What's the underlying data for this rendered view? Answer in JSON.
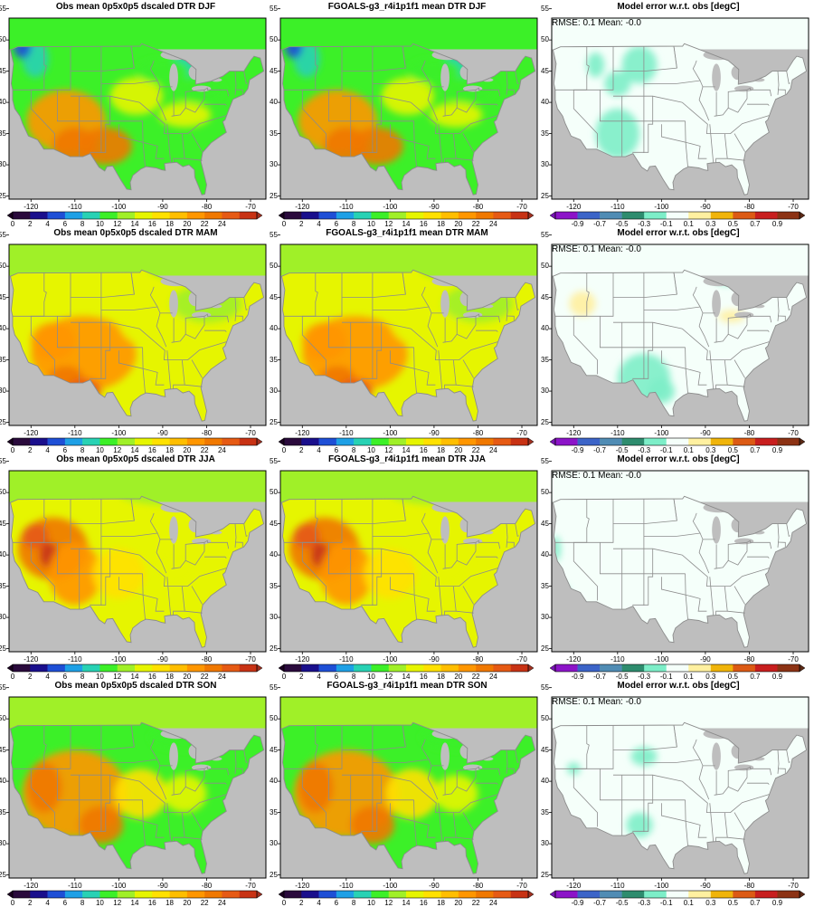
{
  "panels": [
    {
      "title": "Obs mean 0p5x0p5 dscaled DTR DJF",
      "kind": "obs",
      "season": "DJF"
    },
    {
      "title": "FGOALS-g3_r4i1p1f1 mean DTR DJF",
      "kind": "model",
      "season": "DJF"
    },
    {
      "title": "Model error w.r.t. obs [degC]",
      "kind": "error",
      "season": "DJF",
      "annotation": "RMSE: 0.1   Mean: -0.0"
    },
    {
      "title": "Obs mean 0p5x0p5 dscaled DTR MAM",
      "kind": "obs",
      "season": "MAM"
    },
    {
      "title": "FGOALS-g3_r4i1p1f1 mean DTR MAM",
      "kind": "model",
      "season": "MAM"
    },
    {
      "title": "Model error w.r.t. obs [degC]",
      "kind": "error",
      "season": "MAM",
      "annotation": "RMSE: 0.1   Mean: -0.0"
    },
    {
      "title": "Obs mean 0p5x0p5 dscaled DTR JJA",
      "kind": "obs",
      "season": "JJA"
    },
    {
      "title": "FGOALS-g3_r4i1p1f1 mean DTR JJA",
      "kind": "model",
      "season": "JJA"
    },
    {
      "title": "Model error w.r.t. obs [degC]",
      "kind": "error",
      "season": "JJA",
      "annotation": "RMSE: 0.1   Mean: -0.0"
    },
    {
      "title": "Obs mean 0p5x0p5 dscaled DTR SON",
      "kind": "obs",
      "season": "SON"
    },
    {
      "title": "FGOALS-g3_r4i1p1f1 mean DTR SON",
      "kind": "model",
      "season": "SON"
    },
    {
      "title": "Model error w.r.t. obs [degC]",
      "kind": "error",
      "season": "SON",
      "annotation": "RMSE: 0.1   Mean: -0.0"
    }
  ],
  "axes": {
    "lat_ticks": [
      "25",
      "30",
      "35",
      "40",
      "45",
      "50",
      "55"
    ],
    "lon_ticks": [
      "-120",
      "-110",
      "-100",
      "-90",
      "-80",
      "-70"
    ],
    "lon_range": [
      -125,
      -66.5
    ],
    "lat_range": [
      24.5,
      53.5
    ]
  },
  "colorbars": {
    "dtr": {
      "labels": [
        "0",
        "2",
        "4",
        "6",
        "8",
        "10",
        "12",
        "14",
        "16",
        "18",
        "20",
        "22",
        "24"
      ],
      "colors": [
        "#2a0a3c",
        "#1a0f8c",
        "#1e4fd6",
        "#1ea0e6",
        "#28d2b4",
        "#3cf028",
        "#a0f028",
        "#e6f500",
        "#ffe100",
        "#ffbe00",
        "#ff9600",
        "#f07800",
        "#e65a14",
        "#c83214"
      ],
      "end_colors": [
        "#1a0020",
        "#a03020"
      ]
    },
    "err": {
      "labels": [
        "-0.9",
        "-0.7",
        "-0.5",
        "-0.3",
        "-0.1",
        "0.1",
        "0.3",
        "0.5",
        "0.7",
        "0.9"
      ],
      "colors": [
        "#8c14c8",
        "#3c64c8",
        "#508cb4",
        "#2e8c6e",
        "#7deec8",
        "#f5fffa",
        "#fff0a0",
        "#f0b40a",
        "#dc5a14",
        "#c81e1e",
        "#8c3214"
      ],
      "end_colors": [
        "#7814b4",
        "#5a2814"
      ]
    }
  },
  "colors": {
    "land_missing": "#bebebe",
    "border": "#8c8c8c",
    "error_background": "#f5fffa"
  }
}
